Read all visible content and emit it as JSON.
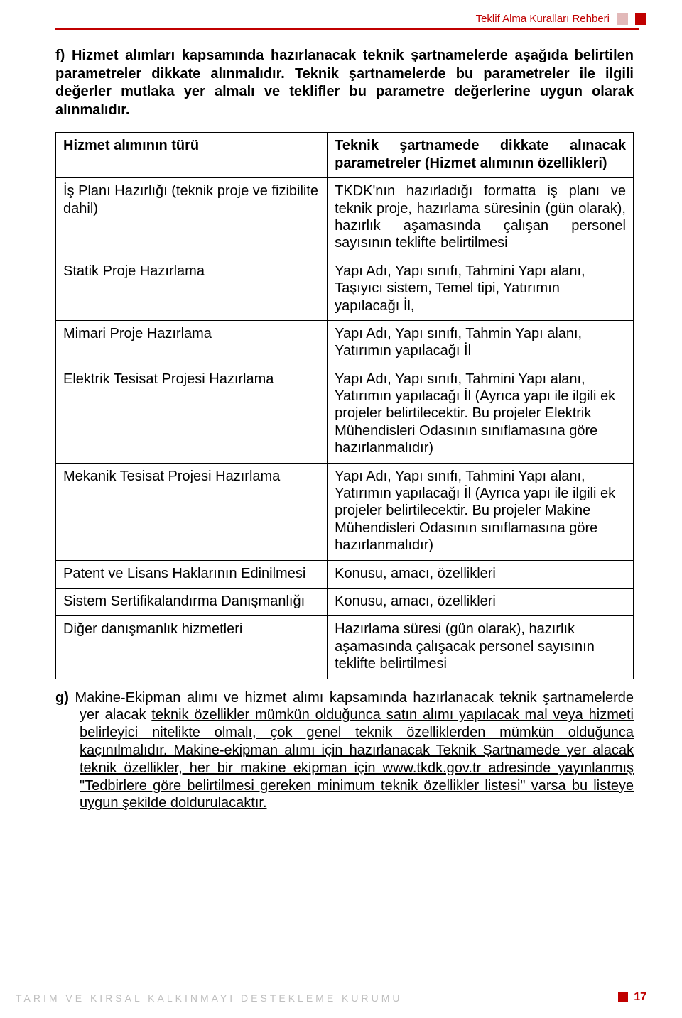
{
  "header": {
    "title": "Teklif Alma Kuralları Rehberi"
  },
  "intro": {
    "label": "f)",
    "text": "Hizmet alımları kapsamında hazırlanacak teknik şartnamelerde aşağıda belirtilen parametreler dikkate alınmalıdır. Teknik şartnamelerde bu parametreler ile ilgili değerler mutlaka yer almalı ve teklifler bu parametre değerlerine uygun olarak alınmalıdır."
  },
  "table": {
    "headers": {
      "left": "Hizmet alımının türü",
      "right": "Teknik şartnamede dikkate alınacak parametreler (Hizmet alımının özellikleri)"
    },
    "rows": [
      {
        "left": "İş Planı Hazırlığı (teknik proje ve fizibilite dahil)",
        "right": "TKDK'nın hazırladığı formatta iş planı ve teknik proje, hazırlama süresinin (gün olarak), hazırlık aşamasında çalışan personel sayısının teklifte belirtilmesi"
      },
      {
        "left": "Statik Proje Hazırlama",
        "right": "Yapı Adı, Yapı sınıfı, Tahmini Yapı alanı, Taşıyıcı sistem, Temel tipi, Yatırımın yapılacağı İl,"
      },
      {
        "left": "Mimari Proje Hazırlama",
        "right": "Yapı Adı, Yapı sınıfı, Tahmin Yapı alanı, Yatırımın yapılacağı İl"
      },
      {
        "left": "Elektrik Tesisat Projesi Hazırlama",
        "right": "Yapı Adı, Yapı sınıfı, Tahmini Yapı alanı, Yatırımın yapılacağı İl (Ayrıca yapı ile ilgili ek projeler belirtilecektir. Bu projeler Elektrik Mühendisleri Odasının sınıflamasına göre hazırlanmalıdır)"
      },
      {
        "left": "Mekanik Tesisat Projesi Hazırlama",
        "right": "Yapı Adı, Yapı sınıfı, Tahmini Yapı alanı, Yatırımın yapılacağı İl (Ayrıca yapı ile ilgili ek projeler belirtilecektir. Bu projeler Makine Mühendisleri Odasının sınıflamasına göre hazırlanmalıdır)"
      },
      {
        "left": "Patent ve Lisans Haklarının Edinilmesi",
        "right": "Konusu, amacı, özellikleri"
      },
      {
        "left": "Sistem Sertifikalandırma Danışmanlığı",
        "right": "Konusu, amacı, özellikleri"
      },
      {
        "left": "Diğer danışmanlık hizmetleri",
        "right": "Hazırlama süresi (gün olarak), hazırlık aşamasında çalışacak personel sayısının teklifte belirtilmesi"
      }
    ]
  },
  "para_g": {
    "label": "g)",
    "plain1": "Makine-Ekipman alımı ve hizmet alımı kapsamında hazırlanacak teknik şartnamelerde yer alacak ",
    "ul": "teknik özellikler mümkün olduğunca satın alımı yapılacak mal veya hizmeti belirleyici nitelikte olmalı, çok genel teknik özelliklerden mümkün olduğunca kaçınılmalıdır. Makine-ekipman alımı için hazırlanacak Teknik Şartnamede yer alacak teknik özellikler, her bir makine ekipman için www.tkdk.gov.tr adresinde yayınlanmış \"Tedbirlere göre belirtilmesi gereken minimum teknik özellikler listesi\" varsa bu listeye uygun şekilde doldurulacaktır."
  },
  "footer": {
    "left": "TARIM VE KIRSAL KALKINMAYI DESTEKLEME KURUMU",
    "page": "17"
  }
}
